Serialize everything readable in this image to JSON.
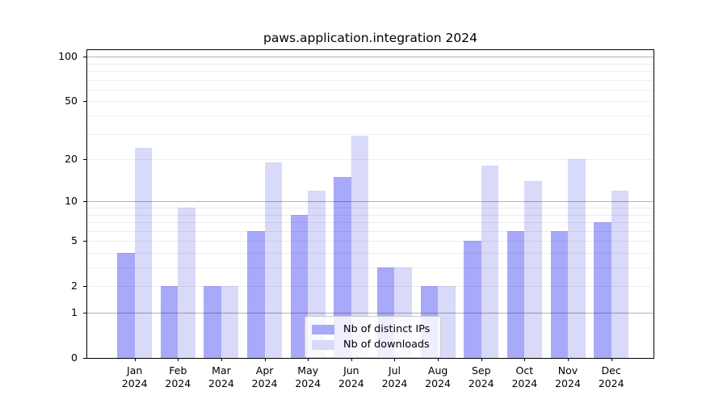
{
  "chart_data": {
    "type": "bar",
    "title": "paws.application.integration 2024",
    "categories": [
      "Jan",
      "Feb",
      "Mar",
      "Apr",
      "May",
      "Jun",
      "Jul",
      "Aug",
      "Sep",
      "Oct",
      "Nov",
      "Dec"
    ],
    "category_year": "2024",
    "series": [
      {
        "name": "Nb of distinct IPs",
        "color": "#a9a9fa",
        "values": [
          4,
          2,
          2,
          6,
          8,
          15,
          3,
          2,
          5,
          6,
          6,
          7
        ]
      },
      {
        "name": "Nb of downloads",
        "color": "#d9d9f9",
        "values": [
          24,
          9,
          2,
          19,
          12,
          29,
          3,
          2,
          18,
          14,
          20,
          12
        ]
      }
    ],
    "xlabel": "",
    "ylabel": "",
    "yscale": "log1p",
    "ylim": [
      0,
      112
    ],
    "yticks": [
      0,
      1,
      2,
      5,
      10,
      20,
      50,
      100
    ],
    "minor_gridlines": [
      2,
      3,
      4,
      5,
      6,
      7,
      8,
      9,
      20,
      30,
      40,
      50,
      60,
      70,
      80,
      90
    ],
    "major_gridlines": [
      1,
      10,
      100
    ],
    "grid": true,
    "grid_above_bars": true,
    "legend_position": "inside lower center-right",
    "colors": {
      "background": "#ffffff",
      "spine": "#000000",
      "text": "#000000",
      "major_grid": "rgba(0,0,0,0.30)",
      "minor_grid": "rgba(0,0,0,0.07)"
    }
  }
}
